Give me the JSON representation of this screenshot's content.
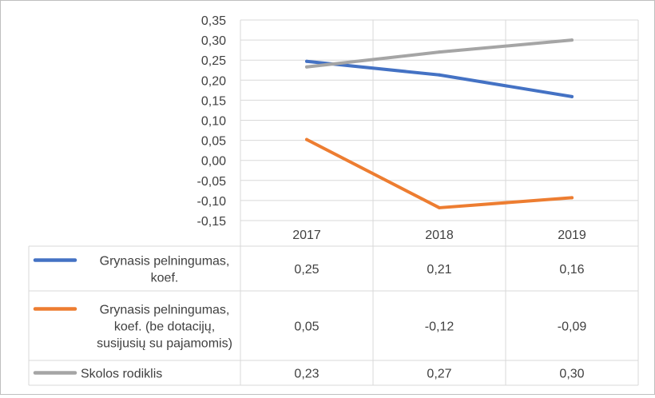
{
  "chart_data": {
    "type": "line",
    "categories": [
      "2017",
      "2018",
      "2019"
    ],
    "ylim": [
      -0.15,
      0.35
    ],
    "y_ticks": [
      "0,35",
      "0,30",
      "0,25",
      "0,20",
      "0,15",
      "0,10",
      "0,05",
      "0,00",
      "-0,05",
      "-0,10",
      "-0,15"
    ],
    "y_tick_values": [
      0.35,
      0.3,
      0.25,
      0.2,
      0.15,
      0.1,
      0.05,
      0.0,
      -0.05,
      -0.1,
      -0.15
    ],
    "grid": true,
    "legend": "data-table",
    "series": [
      {
        "name_lines": [
          "Grynasis pelningumas,",
          "koef."
        ],
        "color": "#4472c4",
        "values": [
          0.247,
          0.213,
          0.159
        ],
        "labels": [
          "0,25",
          "0,21",
          "0,16"
        ]
      },
      {
        "name_lines": [
          "Grynasis pelningumas,",
          "koef. (be dotacijų,",
          "susijusių su pajamomis)"
        ],
        "color": "#ed7d31",
        "values": [
          0.052,
          -0.118,
          -0.093
        ],
        "labels": [
          "0,05",
          "-0,12",
          "-0,09"
        ]
      },
      {
        "name_lines": [
          "Skolos rodiklis"
        ],
        "color": "#a5a5a5",
        "values": [
          0.233,
          0.27,
          0.3
        ],
        "labels": [
          "0,23",
          "0,27",
          "0,30"
        ]
      }
    ]
  }
}
